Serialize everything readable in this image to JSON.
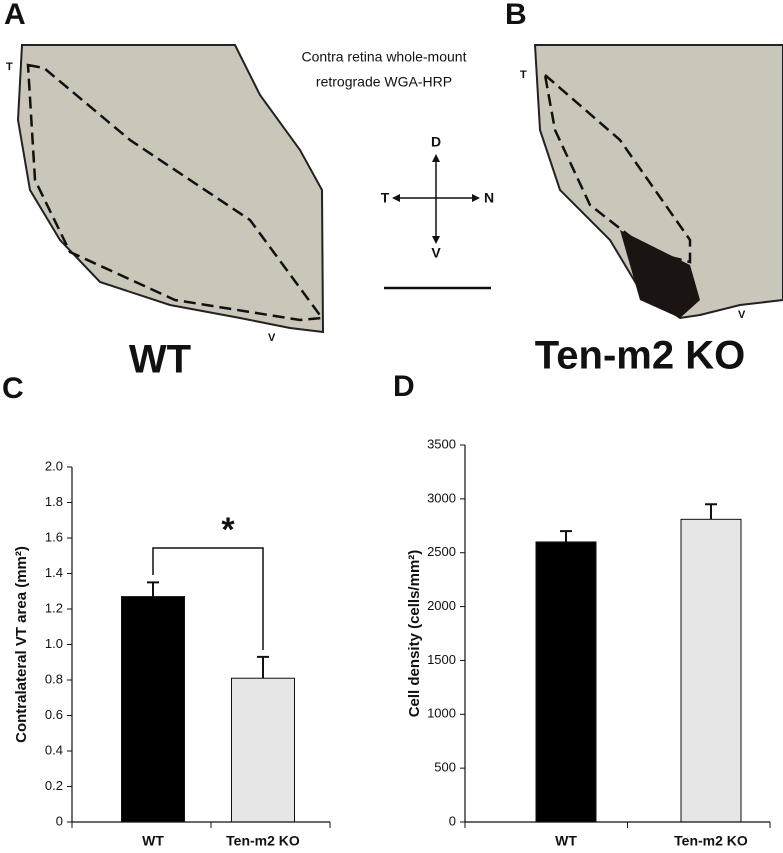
{
  "panels": [
    {
      "letter": "A",
      "label": "WT",
      "marker_top": "T",
      "marker_bottom": "V"
    },
    {
      "letter": "B",
      "label": "Ten-m2 KO",
      "marker_top": "T",
      "marker_bottom": "V"
    }
  ],
  "caption": [
    "Contra retina whole-mount",
    "retrograde WGA-HRP"
  ],
  "compass": {
    "up": "D",
    "left": "T",
    "right": "N",
    "down": "V"
  },
  "chart_data": [
    {
      "type": "bar",
      "panel": "C",
      "y_label": "Contralateral VT area (mm²)",
      "categories": [
        "WT",
        "Ten-m2 KO"
      ],
      "values": [
        1.27,
        0.81
      ],
      "errors": [
        0.08,
        0.12
      ],
      "colors": [
        "#000000",
        "#e6e6e6"
      ],
      "annotation": "*",
      "ylim": [
        0,
        2
      ],
      "yticks": [
        0,
        0.2,
        0.4,
        0.6,
        0.8,
        {
          "value": 1,
          "label": "1.0"
        },
        1.2,
        1.4,
        1.6,
        1.8,
        {
          "value": 2,
          "label": "2.0"
        }
      ]
    },
    {
      "type": "bar",
      "panel": "D",
      "y_label": "Cell density (cells/mm²)",
      "categories": [
        "WT",
        "Ten-m2 KO"
      ],
      "values": [
        2600,
        2810
      ],
      "errors": [
        100,
        140
      ],
      "colors": [
        "#000000",
        "#e6e6e6"
      ],
      "ylim": [
        0,
        3500
      ],
      "yticks": [
        0,
        500,
        1000,
        1500,
        2000,
        2500,
        3000,
        3500
      ]
    }
  ]
}
